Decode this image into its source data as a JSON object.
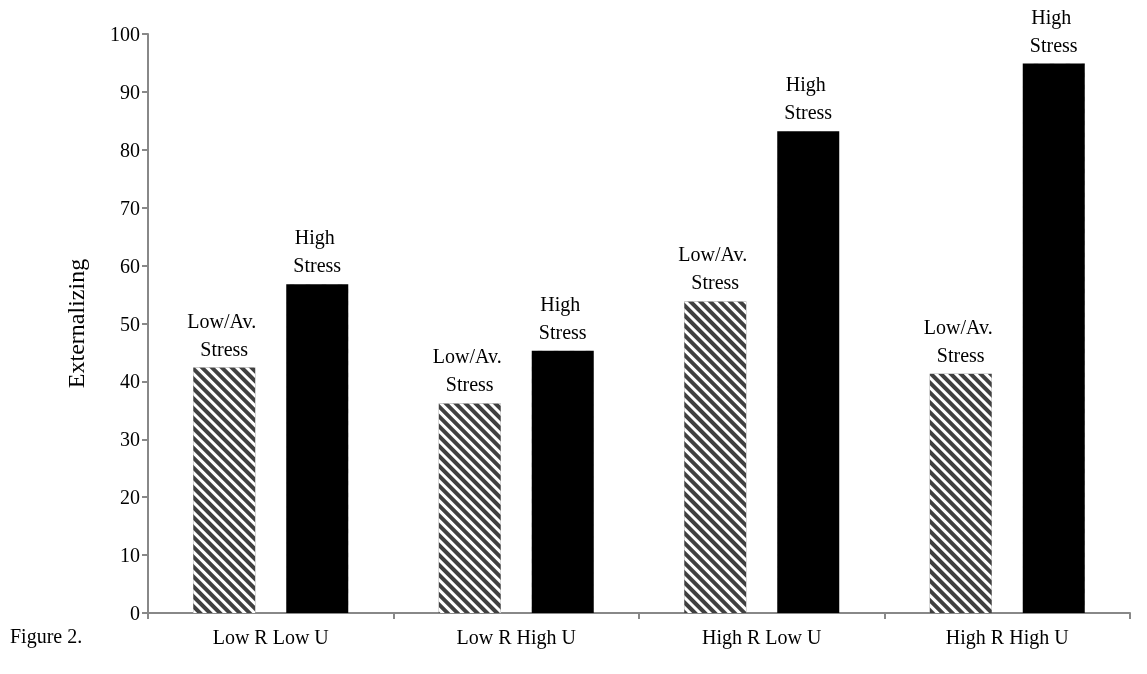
{
  "chart_data": {
    "type": "bar",
    "ylabel": "Externalizing",
    "categories": [
      "Low R Low U",
      "Low R High U",
      "High R Low U",
      "High R High U"
    ],
    "series": [
      {
        "name": "Low/Av. Stress",
        "color": "#404040",
        "values": [
          42.4,
          36.2,
          53.8,
          41.3
        ]
      },
      {
        "name": "High Stress",
        "color": "#000000",
        "values": [
          56.8,
          45.3,
          83.2,
          94.9
        ]
      }
    ],
    "ylim": [
      0,
      100
    ],
    "yticks": [
      0,
      10,
      20,
      30,
      40,
      50,
      60,
      70,
      80,
      90,
      100
    ],
    "grid": false,
    "legend": false,
    "annotations": [
      "Figure 2."
    ]
  }
}
